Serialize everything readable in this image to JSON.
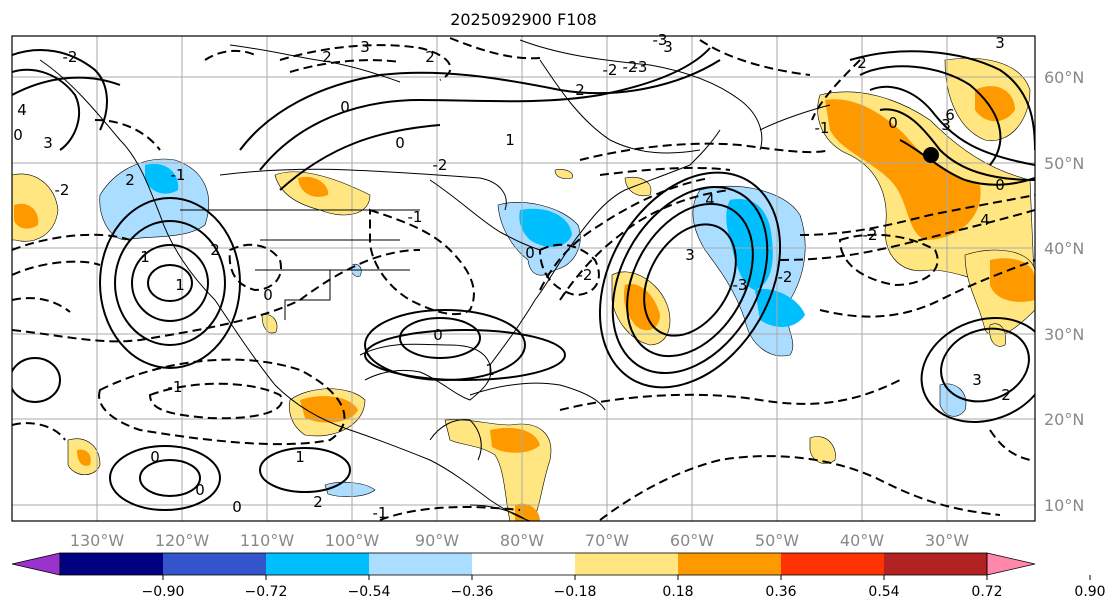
{
  "title": "2025092900 F108",
  "longitude_labels": [
    "130°W",
    "120°W",
    "110°W",
    "100°W",
    "90°W",
    "80°W",
    "70°W",
    "60°W",
    "50°W",
    "40°W",
    "30°W"
  ],
  "latitude_labels": [
    "60°N",
    "50°N",
    "40°N",
    "30°N",
    "20°N",
    "10°N"
  ],
  "colorbar": {
    "tick_labels": [
      "−0.90",
      "−0.72",
      "−0.54",
      "−0.36",
      "−0.18",
      "0.18",
      "0.36",
      "0.54",
      "0.72",
      "0.90"
    ],
    "colors": [
      "#9933cc",
      "#000080",
      "#3355cc",
      "#00bfff",
      "#aaddff",
      "#ffffff",
      "#ffe680",
      "#ff9900",
      "#ff3300",
      "#b22222",
      "#ff88aa"
    ]
  },
  "contour_labels": [
    "3",
    "2",
    "2",
    "1",
    "0",
    "0",
    "-2",
    "2",
    "-3",
    "3",
    "-2",
    "-2",
    "-3",
    "-2",
    "4",
    "3",
    "0",
    "-2",
    "2",
    "-1",
    "1",
    "1",
    "2",
    "0",
    "0",
    "1",
    "-2",
    "0",
    "-1",
    "1",
    "0",
    "-1",
    "0",
    "2",
    "-1",
    "2",
    "3",
    "-2",
    "0",
    "-3",
    "-2",
    "3",
    "4",
    "3",
    "6",
    "0",
    "4",
    "3",
    "2",
    "-1",
    "0"
  ],
  "legend": {}
}
